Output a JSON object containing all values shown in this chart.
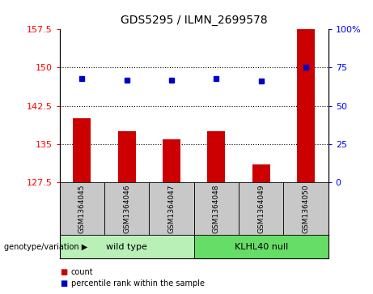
{
  "title": "GDS5295 / ILMN_2699578",
  "samples": [
    "GSM1364045",
    "GSM1364046",
    "GSM1364047",
    "GSM1364048",
    "GSM1364049",
    "GSM1364050"
  ],
  "counts": [
    140.0,
    137.5,
    136.0,
    137.5,
    131.0,
    157.5
  ],
  "percentiles": [
    68,
    67,
    67,
    68,
    66,
    75
  ],
  "ylim_left": [
    127.5,
    157.5
  ],
  "ylim_right": [
    0,
    100
  ],
  "yticks_left": [
    127.5,
    135,
    142.5,
    150,
    157.5
  ],
  "yticks_right": [
    0,
    25,
    50,
    75,
    100
  ],
  "ytick_labels_right": [
    "0",
    "25",
    "50",
    "75",
    "100%"
  ],
  "hlines": [
    135,
    142.5,
    150
  ],
  "bar_color": "#cc0000",
  "dot_color": "#0000cc",
  "group1_label": "wild type",
  "group2_label": "KLHL40 null",
  "group1_indices": [
    0,
    1,
    2
  ],
  "group2_indices": [
    3,
    4,
    5
  ],
  "group_bg_color_light": "#b8f0b8",
  "group_bg_color_dark": "#66dd66",
  "sample_box_color": "#c8c8c8",
  "legend_count_label": "count",
  "legend_percentile_label": "percentile rank within the sample",
  "genotype_label": "genotype/variation"
}
